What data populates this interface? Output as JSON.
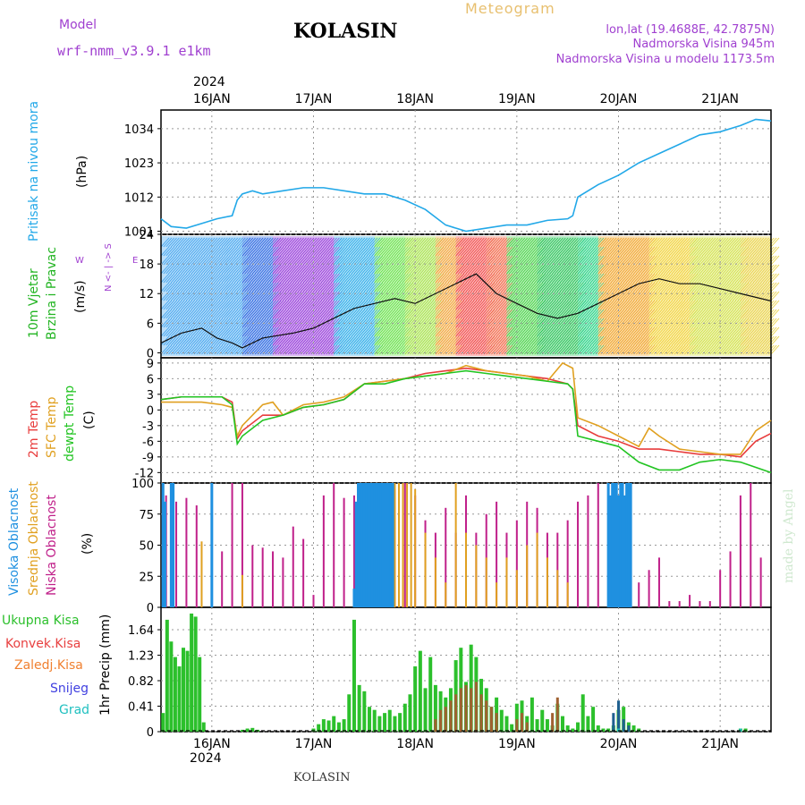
{
  "header": {
    "model_label": "Model",
    "model_name": "wrf-nmm_v3.9.1 e1km",
    "station": "KOLASIN",
    "meteogram_label": "Meteogram",
    "lonlat": "lon,lat (19.4688E, 42.7875N)",
    "altitude": "Nadmorska Visina 945m",
    "model_altitude": "Nadmorska Visina u modelu 1173.5m",
    "year": "2024",
    "footer_station": "KOLASIN",
    "credit": "made by Angel"
  },
  "colors": {
    "pressure": "#22a8e8",
    "wind_label": "#22b422",
    "temp2m": "#e83c3c",
    "sfc": "#e0a020",
    "dewpt": "#22c422",
    "high_cloud": "#1f90e0",
    "mid_cloud": "#e0a020",
    "low_cloud": "#c0208a",
    "total_precip": "#2cc02c",
    "conv_precip": "#e84040",
    "freezing": "#f08030",
    "snow": "#4040e0",
    "hail": "#20c0c0"
  },
  "panels": {
    "pressure": {
      "label": "Pritisak na nivou mora",
      "unit": "(hPa)"
    },
    "wind": {
      "label1": "10m Vjetar",
      "label2": "Brzina i Pravac",
      "unit": "(m/s)",
      "compass": "N <- | -> S",
      "we": "W",
      "ea": "E"
    },
    "temp": {
      "label1": "2m Temp",
      "label2": "SFC Temp",
      "label3": "dewpt Temp",
      "unit": "(C)"
    },
    "cloud": {
      "label1": "Visoka Oblacnost",
      "label2": "Srednja Oblacnost",
      "label3": "Niska Oblacnost",
      "unit": "(%)"
    },
    "precip": {
      "unit": "1hr Precip (mm)",
      "legend": [
        "Ukupna Kisa",
        "Konvek.Kisa",
        "Zaledj.Kisa",
        "Snijeg",
        "Grad"
      ]
    }
  },
  "chart_data": [
    {
      "type": "line",
      "title": "Pritisak na nivou mora",
      "ylabel": "(hPa)",
      "x_day_labels": [
        "16JAN",
        "17JAN",
        "18JAN",
        "19JAN",
        "20JAN",
        "21JAN"
      ],
      "x_range_days": [
        15.5,
        21.5
      ],
      "ylim": [
        1000,
        1040
      ],
      "yticks": [
        1001,
        1012,
        1023,
        1034
      ],
      "series": [
        {
          "x": [
            15.5,
            15.6,
            15.75,
            15.9,
            16.05,
            16.2,
            16.25,
            16.3,
            16.4,
            16.5,
            16.7,
            16.9,
            17.1,
            17.3,
            17.5,
            17.7,
            17.9,
            18.1,
            18.3,
            18.5,
            18.7,
            18.9,
            19.1,
            19.3,
            19.5,
            19.55,
            19.6,
            19.8,
            20.0,
            20.2,
            20.4,
            20.6,
            20.8,
            21.0,
            21.2,
            21.35,
            21.5
          ],
          "values": [
            1005,
            1002.5,
            1002,
            1003.5,
            1005,
            1006,
            1011,
            1013,
            1014,
            1013,
            1014,
            1015,
            1015,
            1014,
            1013,
            1013,
            1011,
            1008,
            1003,
            1001,
            1002,
            1003,
            1003,
            1004.5,
            1005,
            1006,
            1012,
            1016,
            1019,
            1023,
            1026,
            1029,
            1032,
            1033,
            1035,
            1037,
            1036.5
          ]
        }
      ]
    },
    {
      "type": "line",
      "title": "10m Vjetar Brzina i Pravac",
      "ylabel": "(m/s)",
      "ylim": [
        -1,
        24
      ],
      "yticks": [
        0,
        6,
        12,
        18,
        24
      ],
      "series": [
        {
          "x": [
            15.5,
            15.7,
            15.9,
            16.05,
            16.2,
            16.3,
            16.5,
            16.8,
            17.0,
            17.2,
            17.4,
            17.6,
            17.8,
            18.0,
            18.2,
            18.4,
            18.6,
            18.8,
            19.0,
            19.2,
            19.4,
            19.6,
            19.8,
            20.0,
            20.2,
            20.4,
            20.6,
            20.8,
            21.0,
            21.2,
            21.4,
            21.5
          ],
          "values": [
            2,
            4,
            5,
            3,
            2,
            1,
            3,
            4,
            5,
            7,
            9,
            10,
            11,
            10,
            12,
            14,
            16,
            12,
            10,
            8,
            7,
            8,
            10,
            12,
            14,
            15,
            14,
            14,
            13,
            12,
            11,
            10.5
          ]
        }
      ]
    },
    {
      "type": "line",
      "title": "2m Temp / SFC Temp / dewpt Temp",
      "ylabel": "(C)",
      "ylim": [
        -14,
        10
      ],
      "yticks": [
        -12,
        -9,
        -6,
        -3,
        0,
        3,
        6,
        9
      ],
      "series": [
        {
          "name": "2m Temp",
          "x": [
            15.5,
            15.7,
            15.9,
            16.1,
            16.2,
            16.25,
            16.3,
            16.5,
            16.7,
            16.9,
            17.1,
            17.3,
            17.5,
            17.7,
            17.9,
            18.1,
            18.3,
            18.5,
            18.7,
            18.9,
            19.1,
            19.3,
            19.5,
            19.55,
            19.6,
            19.8,
            20.0,
            20.2,
            20.4,
            20.6,
            20.8,
            21.0,
            21.2,
            21.35,
            21.5
          ],
          "values": [
            2,
            2.5,
            2.5,
            2.5,
            1.5,
            -5.5,
            -4,
            -1,
            -1,
            0.5,
            1,
            2,
            5,
            5.5,
            6,
            7,
            7.5,
            8,
            7.5,
            7,
            6.5,
            6,
            5,
            4,
            -3,
            -5,
            -6,
            -7.5,
            -7.5,
            -8,
            -8.5,
            -8.5,
            -9,
            -6,
            -4.5
          ]
        },
        {
          "name": "SFC Temp",
          "x": [
            15.5,
            15.7,
            15.9,
            16.1,
            16.2,
            16.25,
            16.3,
            16.5,
            16.6,
            16.7,
            16.9,
            17.1,
            17.3,
            17.5,
            17.7,
            17.9,
            18.1,
            18.3,
            18.5,
            18.7,
            18.9,
            19.1,
            19.3,
            19.45,
            19.55,
            19.6,
            19.8,
            20.0,
            20.2,
            20.3,
            20.4,
            20.6,
            20.8,
            21.0,
            21.2,
            21.35,
            21.5
          ],
          "values": [
            1.5,
            1.5,
            1.5,
            1,
            0.5,
            -5,
            -3,
            1,
            1.5,
            -1,
            1,
            1.5,
            2.5,
            5,
            5.5,
            6,
            6.5,
            7,
            8.5,
            7.5,
            7,
            6.5,
            5.5,
            9,
            8,
            -1.5,
            -3,
            -5,
            -7,
            -3.5,
            -5,
            -7.5,
            -8,
            -8.5,
            -8.5,
            -4,
            -2
          ]
        },
        {
          "name": "dewpt Temp",
          "x": [
            15.5,
            15.7,
            15.9,
            16.1,
            16.2,
            16.25,
            16.3,
            16.5,
            16.7,
            16.9,
            17.1,
            17.3,
            17.5,
            17.7,
            17.9,
            18.1,
            18.3,
            18.5,
            18.7,
            18.9,
            19.1,
            19.3,
            19.5,
            19.55,
            19.6,
            19.8,
            20.0,
            20.2,
            20.4,
            20.6,
            20.8,
            21.0,
            21.2,
            21.35,
            21.5
          ],
          "values": [
            2,
            2.5,
            2.5,
            2.5,
            1,
            -6.5,
            -5,
            -2,
            -1,
            0.5,
            1,
            2,
            5,
            5,
            6,
            6.5,
            7,
            7.5,
            7,
            6.5,
            6,
            5.5,
            5,
            4,
            -5,
            -6,
            -7,
            -10,
            -11.5,
            -11.5,
            -10,
            -9.5,
            -10,
            -11,
            -12
          ]
        }
      ]
    },
    {
      "type": "bar",
      "title": "Visoka / Srednja / Niska Oblacnost",
      "ylabel": "(%)",
      "ylim": [
        0,
        100
      ],
      "yticks": [
        0,
        25,
        50,
        75,
        100
      ],
      "high": {
        "x": [
          15.52,
          15.54,
          15.6,
          15.62,
          16.0,
          17.4,
          17.42,
          17.44,
          17.46,
          17.48,
          17.5,
          17.52,
          17.54,
          17.56,
          17.58,
          17.6,
          17.62,
          17.64,
          17.66,
          17.68,
          17.7,
          17.72,
          17.74,
          17.76,
          17.78,
          19.9,
          19.92,
          19.94,
          19.96,
          19.98,
          20.0,
          20.02,
          20.04,
          20.06,
          20.08,
          20.1,
          20.12
        ],
        "values": [
          100,
          85,
          100,
          100,
          100,
          15,
          85,
          100,
          100,
          100,
          100,
          100,
          100,
          100,
          100,
          100,
          100,
          100,
          100,
          100,
          100,
          100,
          100,
          100,
          100,
          100,
          90,
          100,
          100,
          100,
          90,
          100,
          100,
          90,
          100,
          100,
          100
        ]
      },
      "mid": {
        "x": [
          15.53,
          15.9,
          16.3,
          17.8,
          17.84,
          17.88,
          17.92,
          17.96,
          18.0,
          18.1,
          18.2,
          18.3,
          18.4,
          18.5,
          18.6,
          18.7,
          18.8,
          18.9,
          19.0,
          19.1,
          19.2,
          19.3,
          19.4,
          19.5
        ],
        "values": [
          35,
          53,
          26,
          100,
          100,
          100,
          100,
          100,
          95,
          60,
          40,
          20,
          100,
          60,
          50,
          40,
          20,
          40,
          30,
          50,
          60,
          40,
          30,
          20
        ]
      },
      "low": {
        "x": [
          15.55,
          15.65,
          15.75,
          15.85,
          16.0,
          16.1,
          16.2,
          16.3,
          16.4,
          16.5,
          16.6,
          16.7,
          16.8,
          16.9,
          17.0,
          17.1,
          17.2,
          17.3,
          17.4,
          17.5,
          17.6,
          17.7,
          17.8,
          17.9,
          18.0,
          18.1,
          18.2,
          18.3,
          18.4,
          18.5,
          18.6,
          18.7,
          18.8,
          18.9,
          19.0,
          19.1,
          19.2,
          19.3,
          19.4,
          19.5,
          19.6,
          19.7,
          19.8,
          19.9,
          20.0,
          20.1,
          20.2,
          20.3,
          20.4,
          20.5,
          20.6,
          20.7,
          20.8,
          20.9,
          21.0,
          21.1,
          21.2,
          21.3,
          21.4
        ],
        "values": [
          90,
          85,
          88,
          82,
          5,
          45,
          100,
          100,
          50,
          48,
          45,
          40,
          65,
          55,
          10,
          90,
          100,
          88,
          90,
          88,
          90,
          100,
          95,
          100,
          90,
          70,
          60,
          80,
          60,
          90,
          60,
          75,
          85,
          60,
          70,
          85,
          80,
          60,
          60,
          70,
          85,
          90,
          100,
          95,
          90,
          90,
          20,
          30,
          40,
          5,
          5,
          10,
          5,
          5,
          30,
          45,
          90,
          100,
          40
        ]
      }
    },
    {
      "type": "bar",
      "title": "1hr Precip",
      "ylabel": "1hr Precip (mm)",
      "ylim": [
        0,
        2.0
      ],
      "yticks": [
        0,
        0.41,
        0.82,
        1.23,
        1.64
      ],
      "total": {
        "x": [
          15.52,
          15.56,
          15.6,
          15.64,
          15.68,
          15.72,
          15.76,
          15.8,
          15.84,
          15.88,
          15.92,
          16.3,
          16.35,
          16.4,
          16.45,
          17.0,
          17.05,
          17.1,
          17.15,
          17.2,
          17.25,
          17.3,
          17.35,
          17.4,
          17.45,
          17.5,
          17.55,
          17.6,
          17.65,
          17.7,
          17.75,
          17.8,
          17.85,
          17.9,
          17.95,
          18.0,
          18.05,
          18.1,
          18.15,
          18.2,
          18.25,
          18.3,
          18.35,
          18.4,
          18.45,
          18.5,
          18.55,
          18.6,
          18.65,
          18.7,
          18.75,
          18.8,
          18.85,
          18.9,
          18.95,
          19.0,
          19.05,
          19.1,
          19.15,
          19.2,
          19.25,
          19.3,
          19.35,
          19.4,
          19.45,
          19.5,
          19.55,
          19.6,
          19.65,
          19.7,
          19.75,
          19.8,
          19.85,
          19.9,
          19.95,
          20.0,
          20.05,
          20.1,
          20.15,
          20.2,
          21.2,
          21.25
        ],
        "values": [
          0.3,
          1.8,
          1.45,
          1.2,
          1.05,
          1.35,
          1.3,
          1.9,
          1.85,
          1.2,
          0.15,
          0.03,
          0.05,
          0.06,
          0.03,
          0.05,
          0.12,
          0.2,
          0.18,
          0.25,
          0.15,
          0.2,
          0.6,
          1.8,
          0.75,
          0.65,
          0.4,
          0.35,
          0.25,
          0.3,
          0.35,
          0.25,
          0.3,
          0.45,
          0.6,
          1.05,
          1.3,
          0.7,
          1.2,
          0.75,
          0.65,
          0.55,
          0.7,
          1.15,
          1.35,
          0.8,
          1.4,
          1.2,
          0.85,
          0.7,
          0.4,
          0.55,
          0.35,
          0.25,
          0.12,
          0.45,
          0.5,
          0.25,
          0.55,
          0.2,
          0.35,
          0.2,
          0.1,
          0.45,
          0.25,
          0.1,
          0.05,
          0.15,
          0.6,
          0.25,
          0.4,
          0.1,
          0.05,
          0.05,
          0.1,
          0.35,
          0.4,
          0.15,
          0.1,
          0.05,
          0.05,
          0.05
        ]
      },
      "convective": {
        "x": [
          18.2,
          18.25,
          18.3,
          18.35,
          18.4,
          18.45,
          18.5,
          18.55,
          18.6,
          18.65,
          18.7,
          18.75,
          18.8,
          19.0,
          19.05,
          19.1,
          19.35,
          19.4
        ],
        "values": [
          0.2,
          0.35,
          0.4,
          0.5,
          0.6,
          0.7,
          0.75,
          0.7,
          0.8,
          0.6,
          0.5,
          0.4,
          0.3,
          0.2,
          0.3,
          0.15,
          0.3,
          0.55
        ]
      },
      "snow": {
        "x": [
          19.95,
          20.0,
          20.05,
          20.1
        ],
        "values": [
          0.3,
          0.5,
          0.2,
          0.1
        ]
      },
      "hail": {
        "x": [
          20.0,
          21.2
        ],
        "values": [
          0.05,
          0.05
        ]
      }
    }
  ]
}
